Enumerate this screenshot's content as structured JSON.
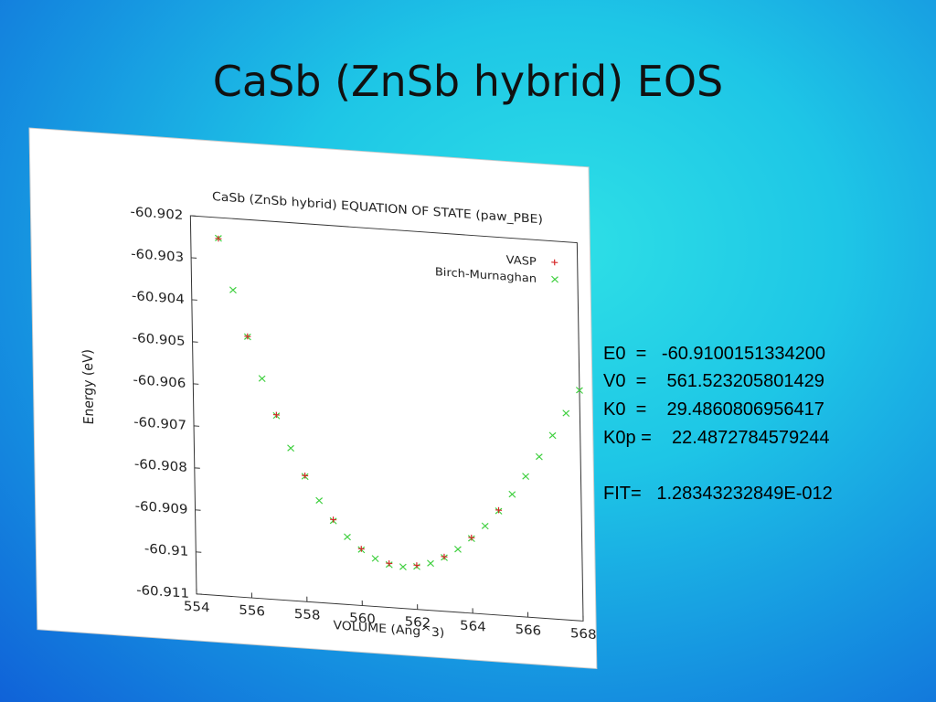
{
  "slide_title": "CaSb (ZnSb hybrid) EOS",
  "fit_params": [
    "E0  =   -60.9100151334200",
    "V0  =    561.523205801429",
    "K0  =    29.4860806956417",
    "K0p =    22.4872784579244",
    "FIT=   1.28343232849E-012"
  ],
  "chart_data": {
    "type": "scatter",
    "title": "CaSb (ZnSb hybrid) EQUATION OF STATE (paw_PBE)",
    "x_label": "VOLUME (Ang^3)",
    "y_label": "Energy (eV)",
    "xlim": [
      554,
      568
    ],
    "xticks": [
      554,
      556,
      558,
      560,
      562,
      564,
      566,
      568
    ],
    "ylim": [
      -60.911,
      -60.902
    ],
    "yticks": [
      -60.902,
      -60.903,
      -60.904,
      -60.905,
      -60.906,
      -60.907,
      -60.908,
      -60.909,
      -60.91,
      -60.911
    ],
    "legend": "top-right",
    "series": [
      {
        "name": "VASP",
        "color": "#d62728",
        "marker": "+",
        "x": [
          555,
          556,
          557,
          558,
          559,
          560,
          561,
          562,
          563,
          564,
          565
        ],
        "values": [
          -60.9025,
          -60.90478,
          -60.9066,
          -60.908,
          -60.909,
          -60.90965,
          -60.90995,
          -60.90995,
          -60.9097,
          -60.9092,
          -60.9085
        ]
      },
      {
        "name": "Birch-Murnaghan",
        "color": "#3ecf3e",
        "marker": "x",
        "x": [
          555,
          555.5,
          556,
          556.5,
          557,
          557.5,
          558,
          558.5,
          559,
          559.5,
          560,
          560.5,
          561,
          561.5,
          562,
          562.5,
          563,
          563.5,
          564,
          564.5,
          565,
          565.5,
          566,
          566.5,
          567,
          567.5,
          568
        ],
        "values": [
          -60.90249,
          -60.9037,
          -60.90479,
          -60.90576,
          -60.90662,
          -60.90737,
          -60.90802,
          -60.90857,
          -60.90903,
          -60.90939,
          -60.90967,
          -60.90986,
          -60.90998,
          -60.91001,
          -60.90998,
          -60.90988,
          -60.90972,
          -60.9095,
          -60.90922,
          -60.9089,
          -60.90852,
          -60.9081,
          -60.90765,
          -60.90716,
          -60.90663,
          -60.90608,
          -60.90551
        ]
      }
    ]
  }
}
